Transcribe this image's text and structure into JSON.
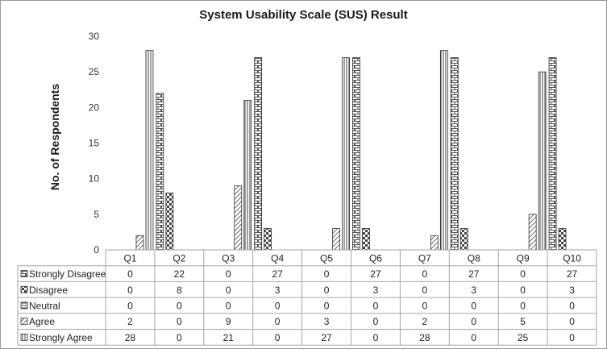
{
  "chart_data": {
    "type": "bar",
    "title": "System Usability Scale (SUS) Result",
    "ylabel": "No. of Respondents",
    "xlabel": "",
    "ylim": [
      0,
      30
    ],
    "yticks": [
      "0",
      "5",
      "10",
      "15",
      "20",
      "25",
      "30"
    ],
    "grid": false,
    "legend": "data-table-rows",
    "categories": [
      "Q1",
      "Q2",
      "Q3",
      "Q4",
      "Q5",
      "Q6",
      "Q7",
      "Q8",
      "Q9",
      "Q10"
    ],
    "series": [
      {
        "name": "Strongly Disagree",
        "pattern": "brick",
        "values": [
          0,
          22,
          0,
          27,
          0,
          27,
          0,
          27,
          0,
          27
        ]
      },
      {
        "name": "Disagree",
        "pattern": "checker",
        "values": [
          0,
          8,
          0,
          3,
          0,
          3,
          0,
          3,
          0,
          3
        ]
      },
      {
        "name": "Neutral",
        "pattern": "horizontal",
        "values": [
          0,
          0,
          0,
          0,
          0,
          0,
          0,
          0,
          0,
          0
        ]
      },
      {
        "name": "Agree",
        "pattern": "diagonal",
        "values": [
          2,
          0,
          9,
          0,
          3,
          0,
          2,
          0,
          5,
          0
        ]
      },
      {
        "name": "Strongly Agree",
        "pattern": "vertical",
        "values": [
          28,
          0,
          21,
          0,
          27,
          0,
          28,
          0,
          25,
          0
        ]
      }
    ]
  }
}
